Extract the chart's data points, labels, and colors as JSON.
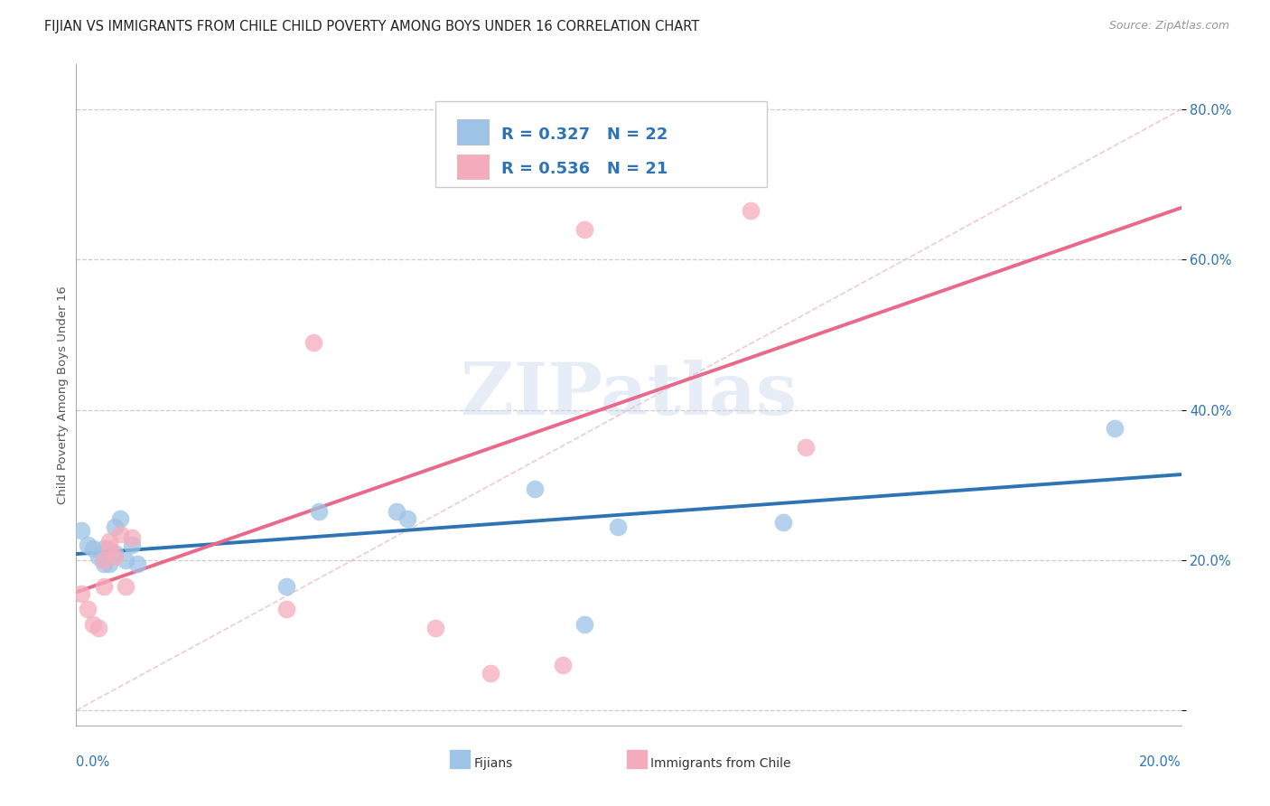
{
  "title": "FIJIAN VS IMMIGRANTS FROM CHILE CHILD POVERTY AMONG BOYS UNDER 16 CORRELATION CHART",
  "source": "Source: ZipAtlas.com",
  "ylabel": "Child Poverty Among Boys Under 16",
  "yticks": [
    0.0,
    0.2,
    0.4,
    0.6,
    0.8
  ],
  "ytick_labels": [
    "",
    "20.0%",
    "40.0%",
    "60.0%",
    "80.0%"
  ],
  "xlim": [
    0.0,
    0.2
  ],
  "ylim": [
    -0.02,
    0.86
  ],
  "legend_R_fijian": "R = 0.327",
  "legend_N_fijian": "N = 22",
  "legend_R_chile": "R = 0.536",
  "legend_N_chile": "N = 21",
  "fijian_color": "#9DC3E6",
  "chile_color": "#F4ACBC",
  "fijian_line_color": "#2E74B5",
  "chile_line_color": "#E8698A",
  "diagonal_color": "#F4ACBC",
  "background_color": "#FFFFFF",
  "grid_color": "#CCCCCC",
  "fijian_x": [
    0.001,
    0.002,
    0.003,
    0.004,
    0.005,
    0.005,
    0.006,
    0.007,
    0.007,
    0.008,
    0.009,
    0.01,
    0.011,
    0.038,
    0.044,
    0.058,
    0.06,
    0.083,
    0.092,
    0.098,
    0.128,
    0.188
  ],
  "fijian_y": [
    0.24,
    0.22,
    0.215,
    0.205,
    0.215,
    0.195,
    0.195,
    0.245,
    0.21,
    0.255,
    0.2,
    0.22,
    0.195,
    0.165,
    0.265,
    0.265,
    0.255,
    0.295,
    0.115,
    0.245,
    0.25,
    0.375
  ],
  "chile_x": [
    0.001,
    0.002,
    0.003,
    0.004,
    0.005,
    0.005,
    0.006,
    0.006,
    0.007,
    0.008,
    0.009,
    0.01,
    0.038,
    0.043,
    0.065,
    0.075,
    0.088,
    0.092,
    0.092,
    0.122,
    0.132
  ],
  "chile_y": [
    0.155,
    0.135,
    0.115,
    0.11,
    0.165,
    0.2,
    0.215,
    0.225,
    0.205,
    0.235,
    0.165,
    0.23,
    0.135,
    0.49,
    0.11,
    0.05,
    0.06,
    0.64,
    0.73,
    0.665,
    0.35
  ],
  "fijian_scatter_label": "Fijians",
  "chile_scatter_label": "Immigrants from Chile",
  "title_fontsize": 10.5,
  "axis_fontsize": 9.5,
  "tick_fontsize": 10.5,
  "legend_fontsize": 13
}
